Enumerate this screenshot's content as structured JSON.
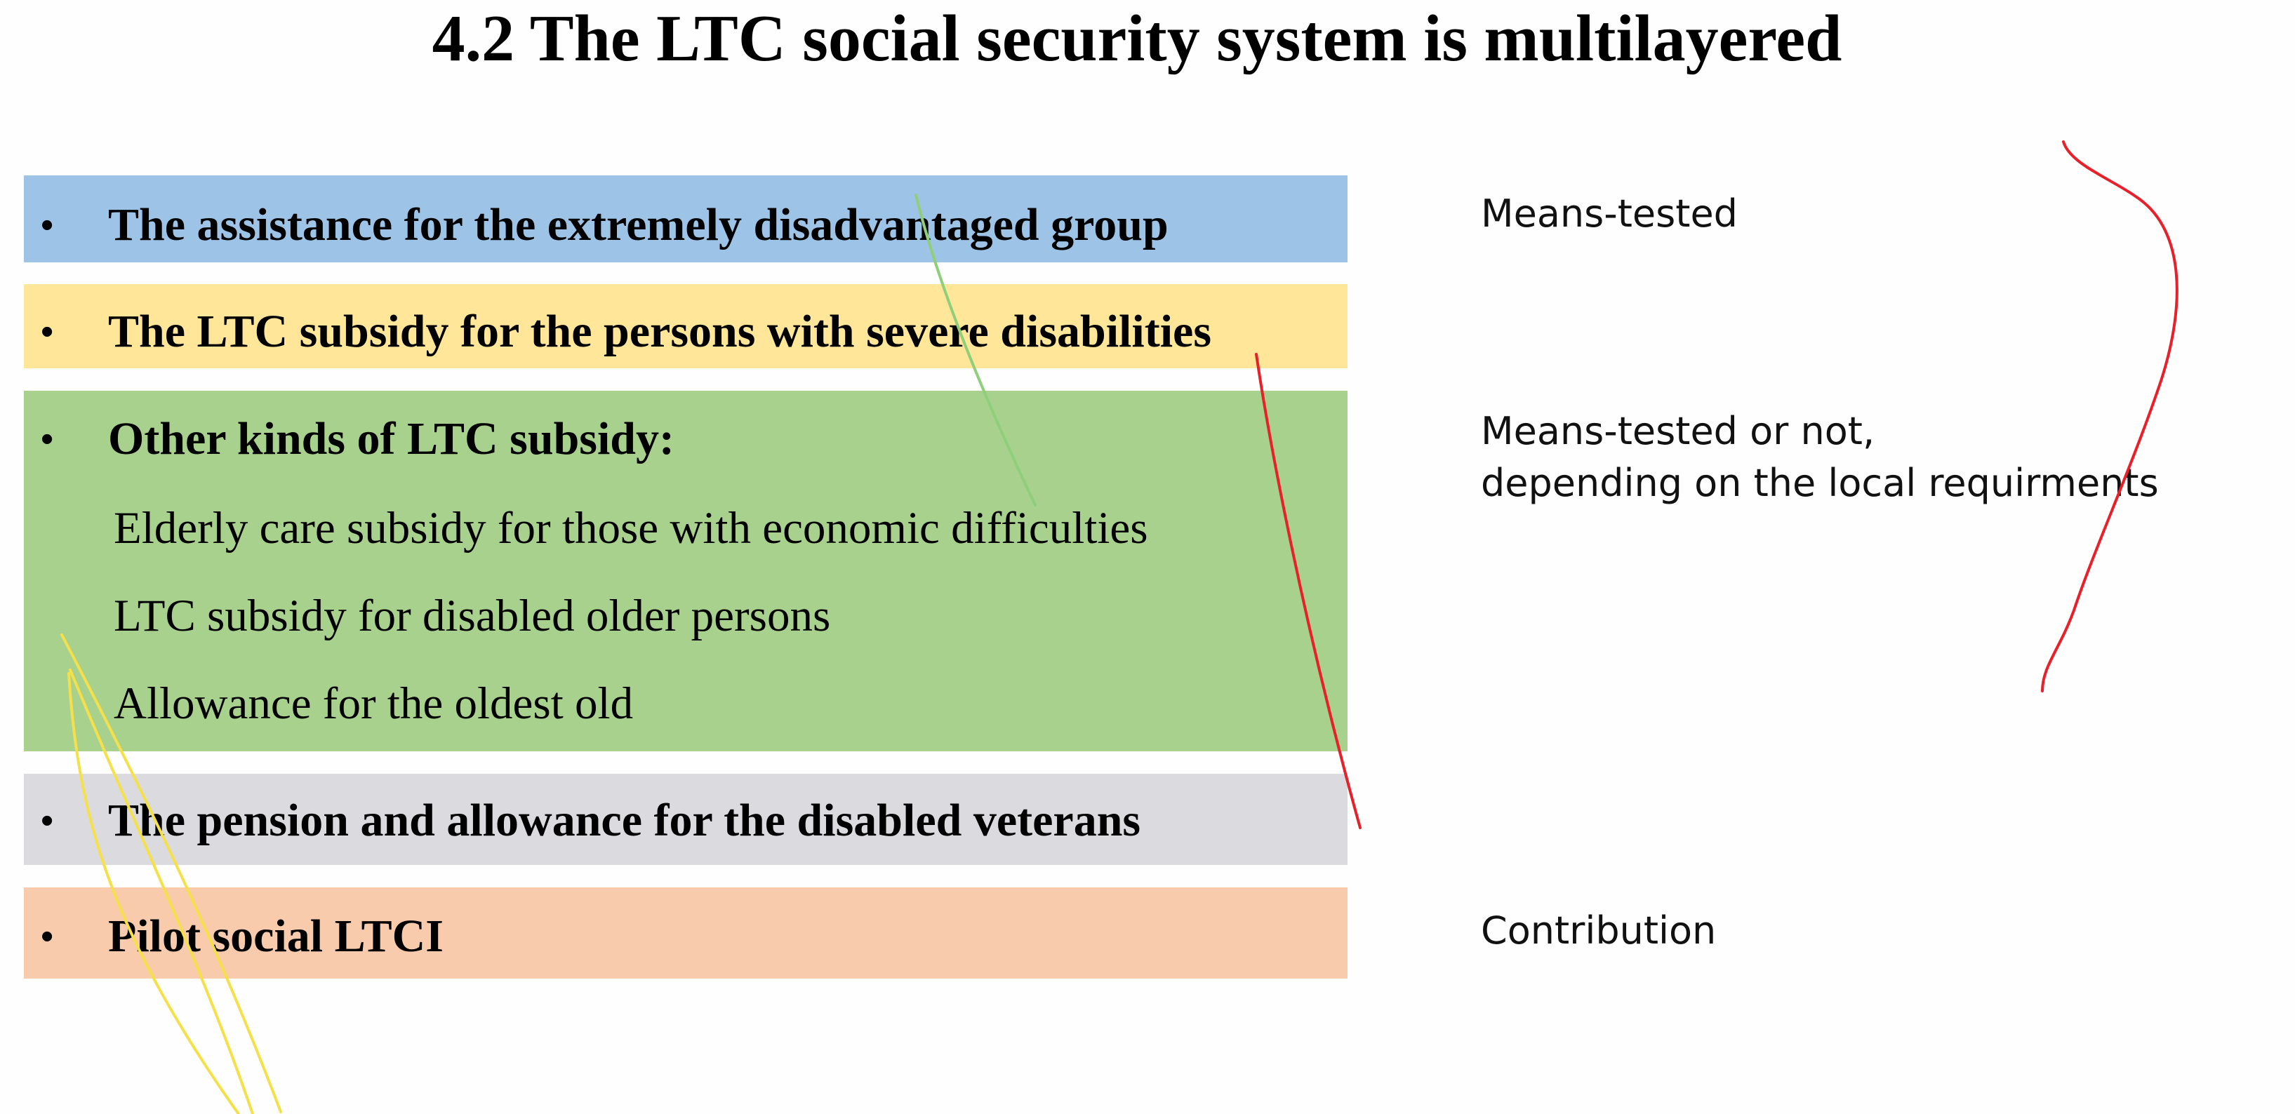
{
  "title": "4.2 The LTC social security system is multilayered",
  "colors": {
    "blue": "#9dc3e6",
    "yellow": "#ffe699",
    "green": "#a9d18e",
    "gray": "#dbdbdf",
    "salmon": "#f8cbad",
    "ink_red": "#e8202a",
    "ink_yellow": "#f5e04a",
    "ink_green": "#8fcf7a"
  },
  "layers": [
    {
      "bullet": "•",
      "text": "The assistance for the extremely disadvantaged group"
    },
    {
      "bullet": "•",
      "text": "The LTC subsidy for the persons with severe disabilities"
    },
    {
      "bullet": "•",
      "text": "Other kinds of LTC subsidy:",
      "sub_items": [
        "Elderly care subsidy for those with economic difficulties",
        "LTC subsidy for disabled older persons",
        "Allowance for the oldest old"
      ]
    },
    {
      "bullet": "•",
      "text": "The pension and allowance for the disabled veterans"
    },
    {
      "bullet": "•",
      "text": "Pilot social LTCI"
    }
  ],
  "notes": {
    "means_tested": "Means-tested",
    "means_tested_or_not": [
      "Means-tested or not,",
      "depending on the local requirments"
    ],
    "contribution": "Contribution"
  }
}
